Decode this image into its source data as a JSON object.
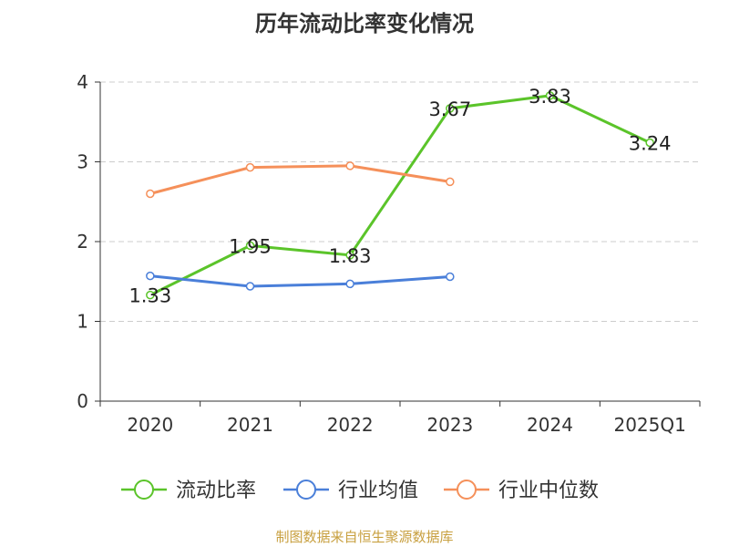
{
  "chart_data": {
    "type": "line",
    "title": "历年流动比率变化情况",
    "categories": [
      "2020",
      "2021",
      "2022",
      "2023",
      "2024",
      "2025Q1"
    ],
    "series": [
      {
        "name": "流动比率",
        "color": "#5bc42a",
        "values": [
          1.33,
          1.95,
          1.83,
          3.67,
          3.83,
          3.24
        ],
        "labels": [
          "1.33",
          "1.95",
          "1.83",
          "3.67",
          "3.83",
          "3.24"
        ]
      },
      {
        "name": "行业均值",
        "color": "#4a7fd9",
        "values": [
          1.57,
          1.44,
          1.47,
          1.56,
          null,
          null
        ]
      },
      {
        "name": "行业中位数",
        "color": "#f5905a",
        "values": [
          2.6,
          2.93,
          2.95,
          2.75,
          null,
          null
        ]
      }
    ],
    "yticks": [
      "0",
      "1",
      "2",
      "3",
      "4"
    ],
    "ylim": [
      0,
      4
    ],
    "grid": true,
    "legend_position": "bottom"
  },
  "footer": {
    "source": "制图数据来自恒生聚源数据库",
    "source_color": "#c8a040"
  }
}
